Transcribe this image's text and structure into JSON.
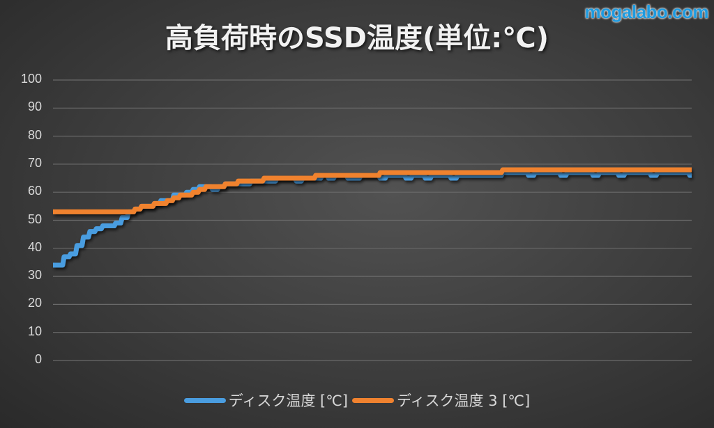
{
  "watermark": "mogalabo.com",
  "chart_data": {
    "type": "line",
    "title": "高負荷時のSSD温度(単位:℃)",
    "xlabel": "",
    "ylabel": "",
    "ylim": [
      0,
      100
    ],
    "yticks": [
      0,
      10,
      20,
      30,
      40,
      50,
      60,
      70,
      80,
      90,
      100
    ],
    "grid": true,
    "legend_position": "bottom",
    "colors": {
      "series1": "#4a9de0",
      "series2": "#f0822f",
      "gridline": "#6a6a6a",
      "text": "#d9d9d9"
    },
    "x": [
      0,
      1,
      2,
      3,
      4,
      5,
      6,
      7,
      8,
      9,
      10,
      11,
      12,
      13,
      14,
      15,
      16,
      17,
      18,
      19,
      20,
      21,
      22,
      23,
      24,
      25,
      26,
      27,
      28,
      29,
      30,
      31,
      32,
      33,
      34,
      35,
      36,
      37,
      38,
      39,
      40,
      41,
      42,
      43,
      44,
      45,
      46,
      47,
      48,
      49,
      50,
      51,
      52,
      53,
      54,
      55,
      56,
      57,
      58,
      59,
      60,
      61,
      62,
      63,
      64,
      65,
      66,
      67,
      68,
      69,
      70,
      71,
      72,
      73,
      74,
      75,
      76,
      77,
      78,
      79,
      80,
      81,
      82,
      83,
      84,
      85,
      86,
      87,
      88,
      89,
      90,
      91,
      92,
      93,
      94,
      95,
      96,
      97,
      98,
      99
    ],
    "series": [
      {
        "name": "ディスク温度 [℃]",
        "values": [
          34,
          34,
          37,
          38,
          41,
          44,
          46,
          47,
          48,
          48,
          49,
          51,
          53,
          54,
          55,
          55,
          56,
          57,
          57,
          59,
          59,
          60,
          61,
          62,
          62,
          61,
          62,
          63,
          63,
          63,
          63,
          64,
          64,
          64,
          64,
          65,
          65,
          65,
          64,
          65,
          65,
          65,
          66,
          65,
          66,
          66,
          65,
          65,
          66,
          66,
          66,
          65,
          66,
          66,
          66,
          65,
          66,
          66,
          65,
          66,
          66,
          66,
          65,
          66,
          66,
          66,
          66,
          66,
          66,
          66,
          67,
          67,
          67,
          67,
          66,
          67,
          67,
          67,
          67,
          66,
          67,
          67,
          67,
          67,
          66,
          67,
          67,
          67,
          66,
          67,
          67,
          67,
          67,
          66,
          67,
          67,
          67,
          67,
          67,
          66
        ]
      },
      {
        "name": "ディスク温度 3 [℃]",
        "values": [
          53,
          53,
          53,
          53,
          53,
          53,
          53,
          53,
          53,
          53,
          53,
          53,
          53,
          54,
          55,
          55,
          56,
          56,
          57,
          58,
          59,
          59,
          60,
          61,
          62,
          62,
          62,
          63,
          63,
          64,
          64,
          64,
          64,
          65,
          65,
          65,
          65,
          65,
          65,
          65,
          65,
          66,
          66,
          66,
          66,
          66,
          66,
          66,
          66,
          66,
          66,
          67,
          67,
          67,
          67,
          67,
          67,
          67,
          67,
          67,
          67,
          67,
          67,
          67,
          67,
          67,
          67,
          67,
          67,
          67,
          68,
          68,
          68,
          68,
          68,
          68,
          68,
          68,
          68,
          68,
          68,
          68,
          68,
          68,
          68,
          68,
          68,
          68,
          68,
          68,
          68,
          68,
          68,
          68,
          68,
          68,
          68,
          68,
          68,
          68
        ]
      }
    ]
  }
}
